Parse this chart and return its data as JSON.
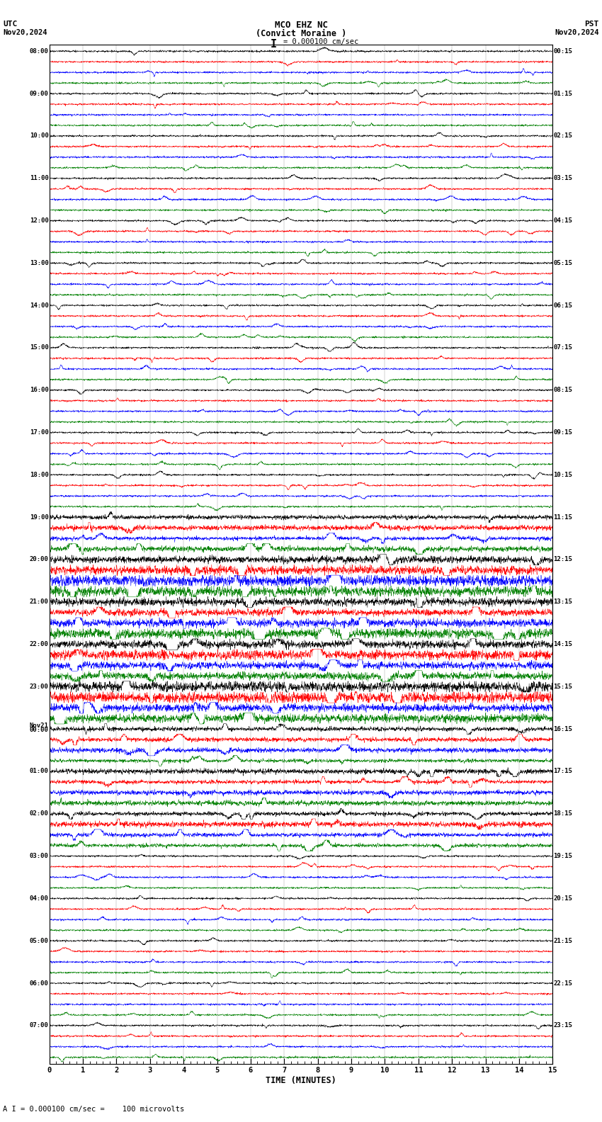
{
  "title_line1": "MCO EHZ NC",
  "title_line2": "(Convict Moraine )",
  "title_scale": "I = 0.000100 cm/sec",
  "label_left_top": "UTC",
  "label_left_date": "Nov20,2024",
  "label_right_top": "PST",
  "label_right_date": "Nov20,2024",
  "xlabel": "TIME (MINUTES)",
  "footer": "A I = 0.000100 cm/sec =    100 microvolts",
  "utc_label_list": [
    "08:00",
    "09:00",
    "10:00",
    "11:00",
    "12:00",
    "13:00",
    "14:00",
    "15:00",
    "16:00",
    "17:00",
    "18:00",
    "19:00",
    "20:00",
    "21:00",
    "22:00",
    "23:00",
    "Nov21\n00:00",
    "01:00",
    "02:00",
    "03:00",
    "04:00",
    "05:00",
    "06:00",
    "07:00"
  ],
  "pst_label_list": [
    "00:15",
    "01:15",
    "02:15",
    "03:15",
    "04:15",
    "05:15",
    "06:15",
    "07:15",
    "08:15",
    "09:15",
    "10:15",
    "11:15",
    "12:15",
    "13:15",
    "14:15",
    "15:15",
    "16:15",
    "17:15",
    "18:15",
    "19:15",
    "20:15",
    "21:15",
    "22:15",
    "23:15"
  ],
  "trace_colors": [
    "black",
    "red",
    "blue",
    "green"
  ],
  "n_groups": 24,
  "traces_per_group": 4,
  "n_points": 2700,
  "bg_color": "white",
  "high_amp_groups": [
    12,
    13,
    14,
    15
  ],
  "med_amp_groups": [
    11,
    16,
    17,
    18
  ]
}
